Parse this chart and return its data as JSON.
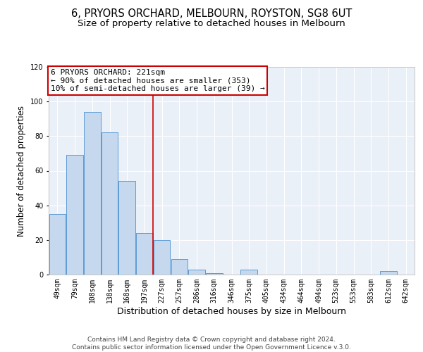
{
  "title": "6, PRYORS ORCHARD, MELBOURN, ROYSTON, SG8 6UT",
  "subtitle": "Size of property relative to detached houses in Melbourn",
  "xlabel": "Distribution of detached houses by size in Melbourn",
  "ylabel": "Number of detached properties",
  "bar_labels": [
    "49sqm",
    "79sqm",
    "108sqm",
    "138sqm",
    "168sqm",
    "197sqm",
    "227sqm",
    "257sqm",
    "286sqm",
    "316sqm",
    "346sqm",
    "375sqm",
    "405sqm",
    "434sqm",
    "464sqm",
    "494sqm",
    "523sqm",
    "553sqm",
    "583sqm",
    "612sqm",
    "642sqm"
  ],
  "bar_values": [
    35,
    69,
    94,
    82,
    54,
    24,
    20,
    9,
    3,
    1,
    0,
    3,
    0,
    0,
    0,
    0,
    0,
    0,
    0,
    2,
    0
  ],
  "bar_color": "#c5d8ed",
  "bar_edgecolor": "#5b9bd5",
  "vline_x": 5.5,
  "vline_color": "#cc0000",
  "ylim": [
    0,
    120
  ],
  "annotation_title": "6 PRYORS ORCHARD: 221sqm",
  "annotation_line1": "← 90% of detached houses are smaller (353)",
  "annotation_line2": "10% of semi-detached houses are larger (39) →",
  "annotation_box_color": "#cc0000",
  "footer1": "Contains HM Land Registry data © Crown copyright and database right 2024.",
  "footer2": "Contains public sector information licensed under the Open Government Licence v.3.0.",
  "title_fontsize": 10.5,
  "subtitle_fontsize": 9.5,
  "xlabel_fontsize": 9,
  "ylabel_fontsize": 8.5,
  "tick_fontsize": 7,
  "annotation_fontsize": 8,
  "footer_fontsize": 6.5
}
